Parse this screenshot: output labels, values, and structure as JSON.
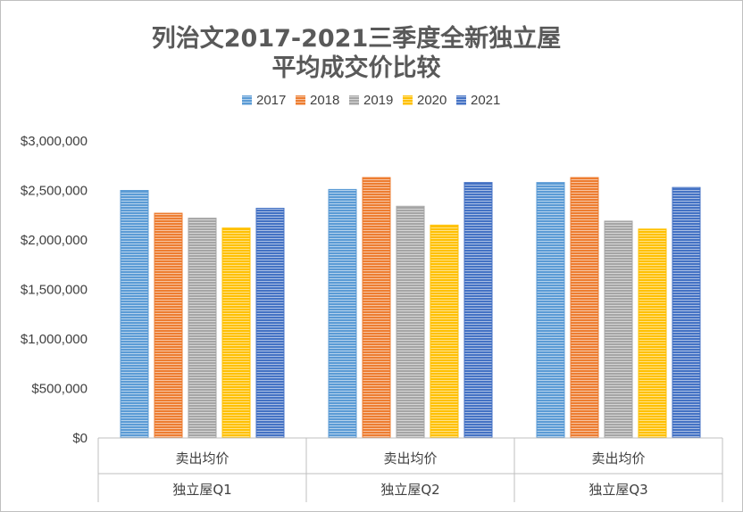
{
  "chart_data": {
    "type": "bar",
    "title_lines": [
      "列治文2017-2021三季度全新独立屋",
      "平均成交价比较"
    ],
    "categories": [
      {
        "sub": "卖出均价",
        "group": "独立屋Q1"
      },
      {
        "sub": "卖出均价",
        "group": "独立屋Q2"
      },
      {
        "sub": "卖出均价",
        "group": "独立屋Q3"
      }
    ],
    "series": [
      {
        "name": "2017",
        "color": "#5b9bd5",
        "values": [
          2500000,
          2510000,
          2580000
        ]
      },
      {
        "name": "2018",
        "color": "#ed7d31",
        "values": [
          2270000,
          2630000,
          2630000
        ]
      },
      {
        "name": "2019",
        "color": "#a5a5a5",
        "values": [
          2220000,
          2340000,
          2190000
        ]
      },
      {
        "name": "2020",
        "color": "#ffc000",
        "values": [
          2120000,
          2150000,
          2110000
        ]
      },
      {
        "name": "2021",
        "color": "#4472c4",
        "values": [
          2320000,
          2580000,
          2530000
        ]
      }
    ],
    "y_ticks": [
      "$0",
      "$500,000",
      "$1,000,000",
      "$1,500,000",
      "$2,000,000",
      "$2,500,000",
      "$3,000,000"
    ],
    "ylim": [
      0,
      3000000
    ],
    "grid": false,
    "legend_position": "top"
  }
}
